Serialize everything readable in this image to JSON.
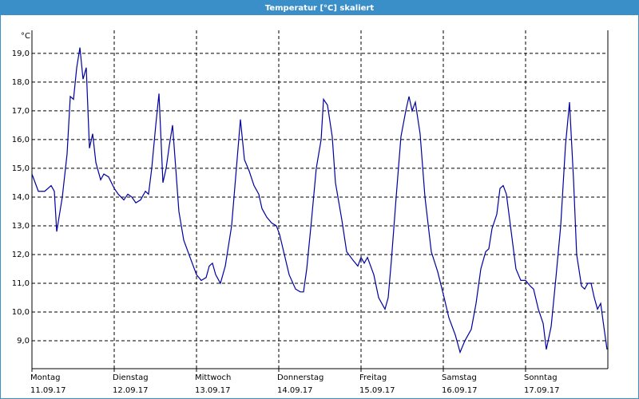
{
  "chart_data": {
    "type": "line",
    "title": "Temperatur [°C] skaliert",
    "y_unit": "°C",
    "x": [
      0,
      0.078,
      0.155,
      0.233,
      0.272,
      0.301,
      0.369,
      0.427,
      0.466,
      0.505,
      0.544,
      0.583,
      0.621,
      0.66,
      0.699,
      0.738,
      0.777,
      0.835,
      0.874,
      0.932,
      1.0,
      1.049,
      1.117,
      1.165,
      1.214,
      1.262,
      1.32,
      1.379,
      1.417,
      1.456,
      1.505,
      1.544,
      1.592,
      1.631,
      1.67,
      1.709,
      1.748,
      1.786,
      1.845,
      1.922,
      2.0,
      2.058,
      2.117,
      2.155,
      2.194,
      2.233,
      2.291,
      2.35,
      2.427,
      2.485,
      2.534,
      2.583,
      2.641,
      2.699,
      2.757,
      2.796,
      2.854,
      2.913,
      2.971,
      3.01,
      3.068,
      3.126,
      3.204,
      3.262,
      3.301,
      3.34,
      3.398,
      3.456,
      3.515,
      3.544,
      3.592,
      3.65,
      3.689,
      3.767,
      3.825,
      3.903,
      3.961,
      4.0,
      4.039,
      4.078,
      4.155,
      4.214,
      4.291,
      4.33,
      4.369,
      4.427,
      4.485,
      4.544,
      4.583,
      4.621,
      4.66,
      4.718,
      4.777,
      4.854,
      4.932,
      5.01,
      5.068,
      5.146,
      5.204,
      5.262,
      5.301,
      5.34,
      5.398,
      5.456,
      5.515,
      5.553,
      5.592,
      5.65,
      5.689,
      5.728,
      5.767,
      5.825,
      5.883,
      5.942,
      6.0,
      6.058,
      6.097,
      6.155,
      6.214,
      6.252,
      6.311,
      6.369,
      6.427,
      6.485,
      6.534,
      6.583,
      6.621,
      6.68,
      6.718,
      6.757,
      6.796,
      6.835,
      6.874,
      6.913,
      6.951,
      6.99
    ],
    "series": [
      {
        "name": "Temperatur",
        "color": "#0000a0",
        "values": [
          14.8,
          14.2,
          14.2,
          14.4,
          14.2,
          12.8,
          14.0,
          15.5,
          17.5,
          17.4,
          18.5,
          19.2,
          18.1,
          18.5,
          15.7,
          16.2,
          15.2,
          14.6,
          14.8,
          14.7,
          14.3,
          14.1,
          13.9,
          14.1,
          14.0,
          13.8,
          13.9,
          14.2,
          14.1,
          15.0,
          16.5,
          17.6,
          14.5,
          15.0,
          15.8,
          16.5,
          15.0,
          13.5,
          12.5,
          11.9,
          11.3,
          11.1,
          11.2,
          11.6,
          11.7,
          11.3,
          11.0,
          11.6,
          13.0,
          15.0,
          16.7,
          15.3,
          14.9,
          14.4,
          14.1,
          13.6,
          13.3,
          13.1,
          13.0,
          12.7,
          12.0,
          11.3,
          10.8,
          10.7,
          10.7,
          11.5,
          13.2,
          15.0,
          16.0,
          17.4,
          17.2,
          16.1,
          14.5,
          13.2,
          12.1,
          11.8,
          11.6,
          11.9,
          11.7,
          11.9,
          11.3,
          10.5,
          10.1,
          10.5,
          11.8,
          14.0,
          16.1,
          17.0,
          17.5,
          17.0,
          17.3,
          16.2,
          14.0,
          12.1,
          11.4,
          10.5,
          9.8,
          9.2,
          8.6,
          9.0,
          9.2,
          9.4,
          10.3,
          11.5,
          12.1,
          12.2,
          12.9,
          13.4,
          14.3,
          14.4,
          14.1,
          12.8,
          11.5,
          11.1,
          11.1,
          10.9,
          10.8,
          10.1,
          9.6,
          8.7,
          9.5,
          11.2,
          13.0,
          15.8,
          17.3,
          14.6,
          12.0,
          10.9,
          10.8,
          11.0,
          11.0,
          10.5,
          10.1,
          10.3,
          9.5,
          8.7
        ]
      }
    ],
    "xlim": [
      0,
      7
    ],
    "xticks": [
      {
        "value": 0,
        "label": "Montag",
        "date": "11.09.17"
      },
      {
        "value": 1,
        "label": "Dienstag",
        "date": "12.09.17"
      },
      {
        "value": 2,
        "label": "Mittwoch",
        "date": "13.09.17"
      },
      {
        "value": 3,
        "label": "Donnerstag",
        "date": "14.09.17"
      },
      {
        "value": 4,
        "label": "Freitag",
        "date": "15.09.17"
      },
      {
        "value": 5,
        "label": "Samstag",
        "date": "16.09.17"
      },
      {
        "value": 6,
        "label": "Sonntag",
        "date": "17.09.17"
      }
    ],
    "ylim": [
      8.03,
      19.8
    ],
    "yticks": [
      {
        "value": 9,
        "label": "9,0"
      },
      {
        "value": 10,
        "label": "10,0"
      },
      {
        "value": 11,
        "label": "11,0"
      },
      {
        "value": 12,
        "label": "12,0"
      },
      {
        "value": 13,
        "label": "13,0"
      },
      {
        "value": 14,
        "label": "14,0"
      },
      {
        "value": 15,
        "label": "15,0"
      },
      {
        "value": 16,
        "label": "16,0"
      },
      {
        "value": 17,
        "label": "17,0"
      },
      {
        "value": 18,
        "label": "18,0"
      },
      {
        "value": 19,
        "label": "19,0"
      }
    ],
    "grid": true
  }
}
